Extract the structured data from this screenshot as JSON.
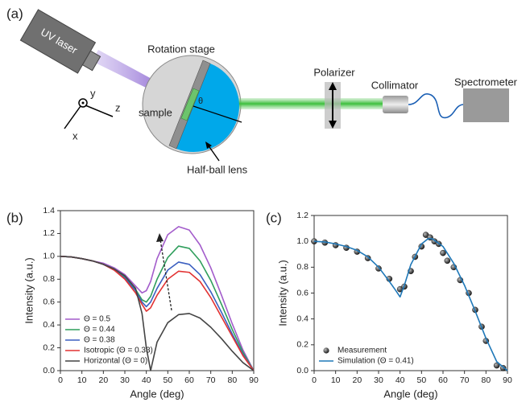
{
  "diagram": {
    "panel": "(a)",
    "uv_laser": "UV laser",
    "rotation_stage": "Rotation stage",
    "axis_y": "y",
    "axis_z": "z",
    "axis_x": "x",
    "sample": "sample",
    "angle": "θ",
    "half_ball_lens": "Half-ball lens",
    "polarizer": "Polarizer",
    "collimator": "Collimator",
    "spectrometer": "Spectrometer"
  },
  "chart_data": [
    {
      "type": "line",
      "label": "(b)",
      "x_label": "Angle (deg)",
      "y_label": "Intensity (a.u.)",
      "x": [
        0,
        5,
        10,
        15,
        20,
        25,
        30,
        35,
        38,
        40,
        42,
        45,
        50,
        55,
        60,
        65,
        70,
        75,
        80,
        85,
        90
      ],
      "series": [
        {
          "name": "Θ = 0.5",
          "color": "#a35ccb",
          "values": [
            1.0,
            0.995,
            0.98,
            0.96,
            0.94,
            0.9,
            0.84,
            0.74,
            0.68,
            0.7,
            0.78,
            0.98,
            1.19,
            1.26,
            1.23,
            1.1,
            0.9,
            0.66,
            0.41,
            0.18,
            0
          ]
        },
        {
          "name": "Θ = 0.44",
          "color": "#2f9e5c",
          "values": [
            1.0,
            0.995,
            0.98,
            0.96,
            0.93,
            0.89,
            0.82,
            0.71,
            0.62,
            0.6,
            0.65,
            0.8,
            0.99,
            1.09,
            1.07,
            0.96,
            0.79,
            0.58,
            0.36,
            0.16,
            0
          ]
        },
        {
          "name": "Θ = 0.38",
          "color": "#3b5fc0",
          "values": [
            1.0,
            0.995,
            0.98,
            0.96,
            0.93,
            0.88,
            0.81,
            0.7,
            0.6,
            0.56,
            0.6,
            0.72,
            0.88,
            0.95,
            0.93,
            0.84,
            0.69,
            0.51,
            0.32,
            0.14,
            0
          ]
        },
        {
          "name": "Isotropic (Θ = 0.33)",
          "color": "#e23232",
          "values": [
            1.0,
            0.995,
            0.98,
            0.96,
            0.93,
            0.88,
            0.8,
            0.68,
            0.58,
            0.52,
            0.55,
            0.66,
            0.8,
            0.87,
            0.86,
            0.78,
            0.64,
            0.47,
            0.3,
            0.13,
            0
          ]
        },
        {
          "name": "Horizontal (Θ = 0)",
          "color": "#444444",
          "values": [
            1.0,
            0.995,
            0.98,
            0.96,
            0.93,
            0.89,
            0.83,
            0.72,
            0.5,
            0.2,
            0,
            0.25,
            0.42,
            0.49,
            0.5,
            0.46,
            0.38,
            0.28,
            0.17,
            0.07,
            0
          ]
        }
      ],
      "xlim": [
        0,
        90
      ],
      "xticks": [
        0,
        10,
        20,
        30,
        40,
        50,
        60,
        70,
        80,
        90
      ],
      "ylim": [
        0,
        1.4
      ],
      "yticks": [
        {
          "value": 0,
          "label": "0.0"
        },
        0.2,
        0.4,
        0.6,
        0.8,
        {
          "value": 1,
          "label": "1.0"
        },
        1.2,
        1.4
      ],
      "legend": "lower left",
      "grid": false
    },
    {
      "type": "line",
      "label": "(c)",
      "x_label": "Angle (deg)",
      "y_label": "Intensity (a.u.)",
      "series": [
        {
          "name": "Measurement",
          "type": "scatter",
          "color": "#111111",
          "x": [
            0,
            5,
            10,
            15,
            20,
            25,
            30,
            35,
            40,
            42,
            45,
            47,
            50,
            52,
            54,
            56,
            58,
            60,
            62,
            65,
            68,
            72,
            75,
            78,
            80,
            85,
            88
          ],
          "values": [
            1.0,
            0.99,
            0.97,
            0.95,
            0.92,
            0.87,
            0.79,
            0.71,
            0.63,
            0.65,
            0.77,
            0.88,
            0.96,
            1.05,
            1.03,
            1.0,
            0.98,
            0.91,
            0.85,
            0.8,
            0.7,
            0.6,
            0.47,
            0.34,
            0.23,
            0.04,
            0.02
          ]
        },
        {
          "name": "Simulation (Θ = 0.41)",
          "type": "line",
          "color": "#1f78b8",
          "x": [
            0,
            5,
            10,
            15,
            20,
            25,
            30,
            35,
            38,
            40,
            42,
            45,
            50,
            53,
            55,
            60,
            65,
            70,
            75,
            80,
            85,
            90
          ],
          "values": [
            1.0,
            0.995,
            0.98,
            0.96,
            0.93,
            0.88,
            0.8,
            0.69,
            0.62,
            0.57,
            0.66,
            0.82,
            0.98,
            1.02,
            1.02,
            0.96,
            0.83,
            0.66,
            0.46,
            0.25,
            0.07,
            0
          ]
        }
      ],
      "xlim": [
        0,
        90
      ],
      "xticks": [
        0,
        10,
        20,
        30,
        40,
        50,
        60,
        70,
        80,
        90
      ],
      "ylim": [
        0,
        1.2
      ],
      "yticks": [
        {
          "value": 0,
          "label": "0.0"
        },
        0.2,
        0.4,
        0.6,
        0.8,
        {
          "value": 1,
          "label": "1.0"
        },
        1.2
      ],
      "legend": "lower left",
      "grid": false
    }
  ]
}
